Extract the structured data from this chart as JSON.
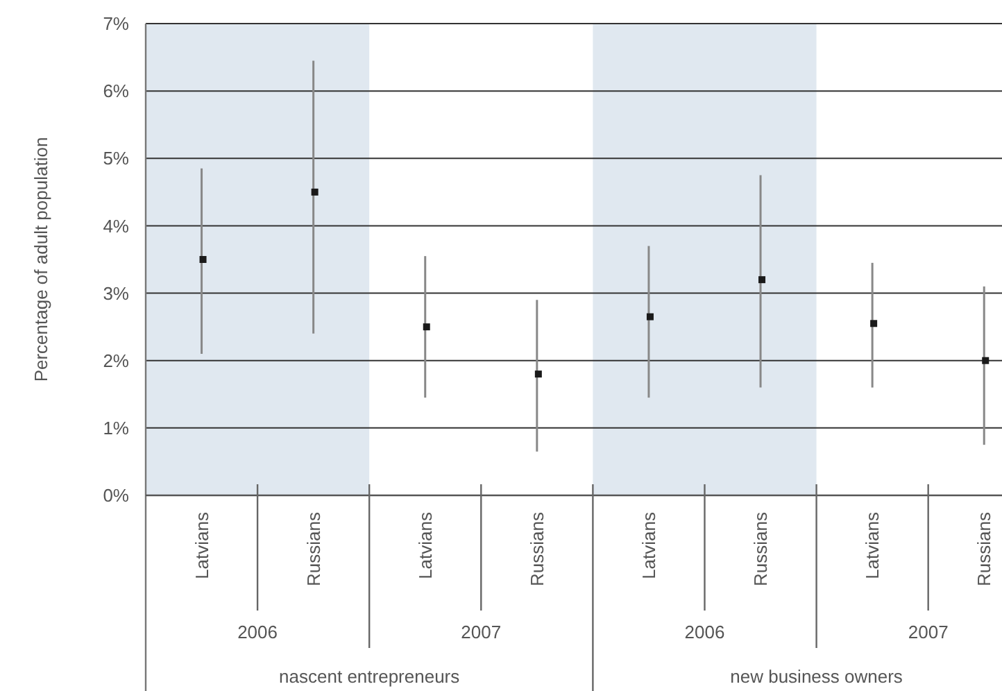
{
  "chart_data": {
    "type": "scatter",
    "ylabel": "Percentage of adult population",
    "categories": [
      "Latvians",
      "Russians",
      "Latvians",
      "Russians",
      "Latvians",
      "Russians",
      "Latvians",
      "Russians"
    ],
    "values": [
      3.5,
      4.5,
      2.5,
      1.8,
      2.65,
      3.2,
      2.55,
      2.0
    ],
    "errors": [
      [
        2.1,
        4.85
      ],
      [
        2.4,
        6.45
      ],
      [
        1.45,
        3.55
      ],
      [
        0.65,
        2.9
      ],
      [
        1.45,
        3.7
      ],
      [
        1.6,
        4.75
      ],
      [
        1.6,
        3.45
      ],
      [
        0.75,
        3.1
      ]
    ],
    "color": "#1a1a1a",
    "marker": "square",
    "ylim": [
      0,
      7
    ],
    "yticks": [
      {
        "value": 0,
        "label": "0%"
      },
      {
        "value": 1,
        "label": "1%"
      },
      {
        "value": 2,
        "label": "2%"
      },
      {
        "value": 3,
        "label": "3%"
      },
      {
        "value": 4,
        "label": "4%"
      },
      {
        "value": 5,
        "label": "5%"
      },
      {
        "value": 6,
        "label": "6%"
      },
      {
        "value": 7,
        "label": "7%"
      }
    ],
    "grid": "y",
    "annotations": [
      "2006",
      "2007",
      "2006",
      "2007",
      "nascent entrepreneurs",
      "new business owners"
    ]
  }
}
